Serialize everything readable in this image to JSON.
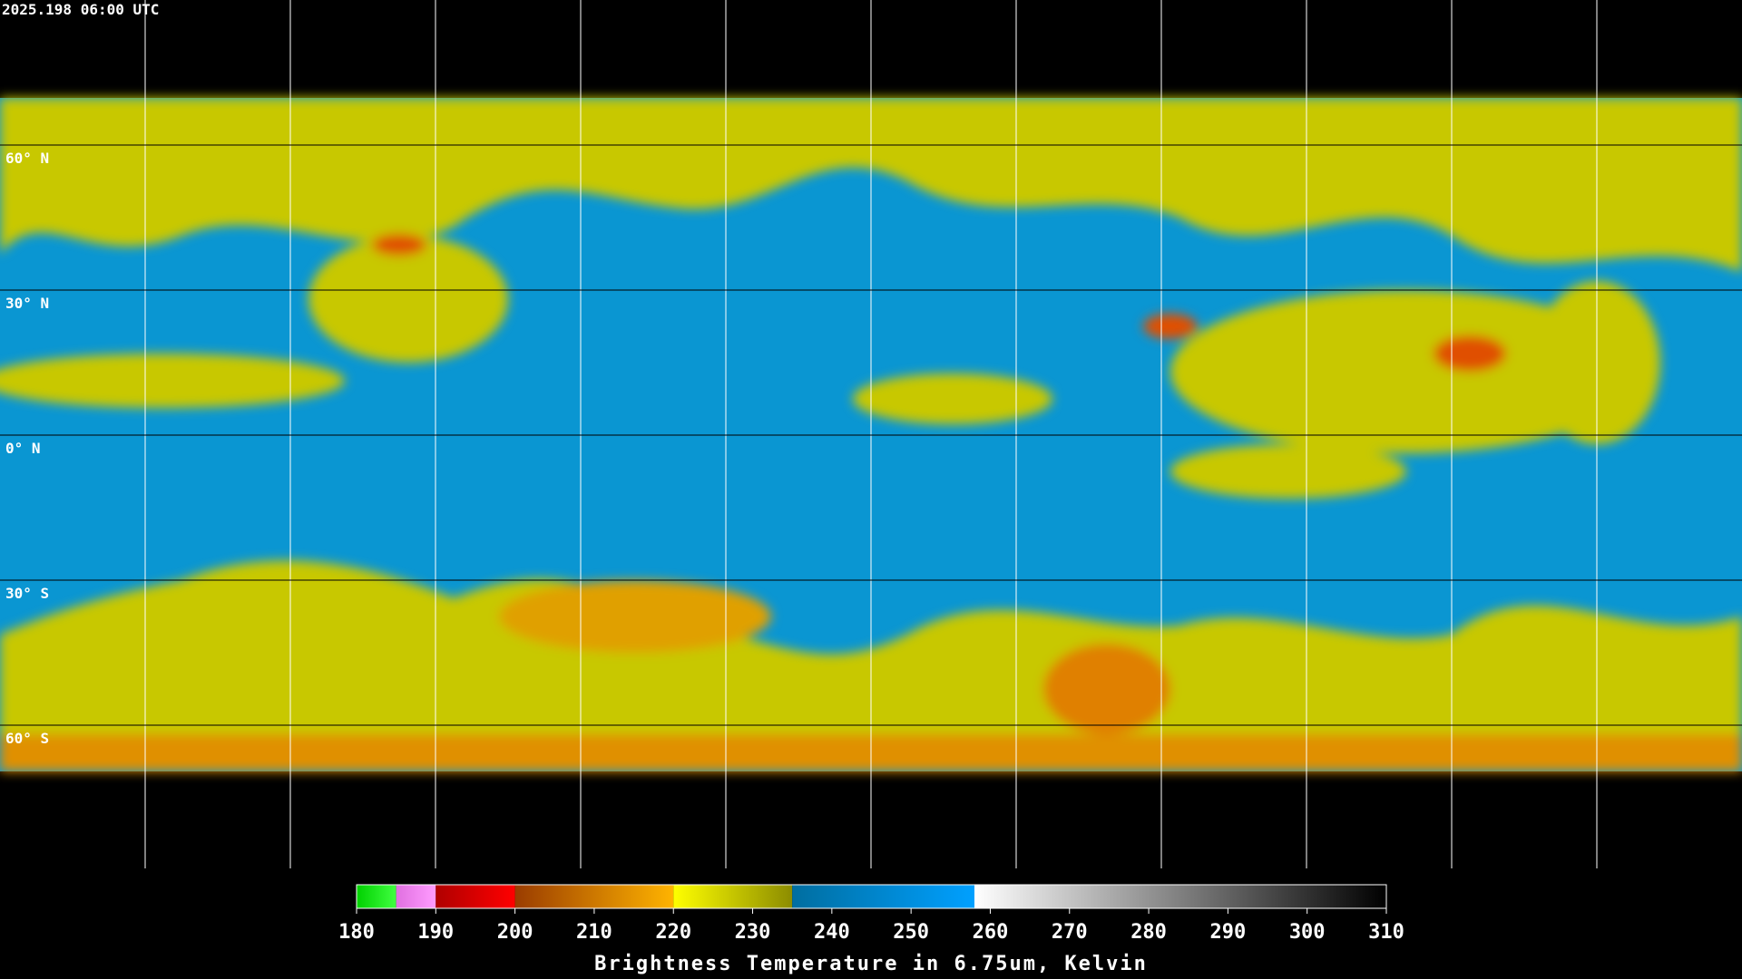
{
  "header": {
    "timestamp": "2025.198 06:00 UTC"
  },
  "map": {
    "lat_labels": [
      "60° N",
      "30° N",
      "0° N",
      "30° S",
      "60° S"
    ]
  },
  "colorbar": {
    "range": [
      180,
      310
    ],
    "ticks": [
      180,
      190,
      200,
      210,
      220,
      230,
      240,
      250,
      260,
      270,
      280,
      290,
      300,
      310
    ],
    "segments": [
      {
        "from": 180,
        "to": 185,
        "colors": [
          "#00d000",
          "#40ff40"
        ]
      },
      {
        "from": 185,
        "to": 190,
        "colors": [
          "#e070e0",
          "#ff9cff"
        ]
      },
      {
        "from": 190,
        "to": 200,
        "colors": [
          "#b00000",
          "#ff0000"
        ]
      },
      {
        "from": 200,
        "to": 220,
        "colors": [
          "#9a3c00",
          "#ffb400"
        ]
      },
      {
        "from": 220,
        "to": 235,
        "colors": [
          "#ffff00",
          "#8c8c00"
        ]
      },
      {
        "from": 235,
        "to": 258,
        "colors": [
          "#006ea0",
          "#00a0ff"
        ]
      },
      {
        "from": 258,
        "to": 310,
        "colors": [
          "#ffffff",
          "#000000"
        ]
      }
    ],
    "label": "Brightness Temperature in 6.75um, Kelvin"
  }
}
